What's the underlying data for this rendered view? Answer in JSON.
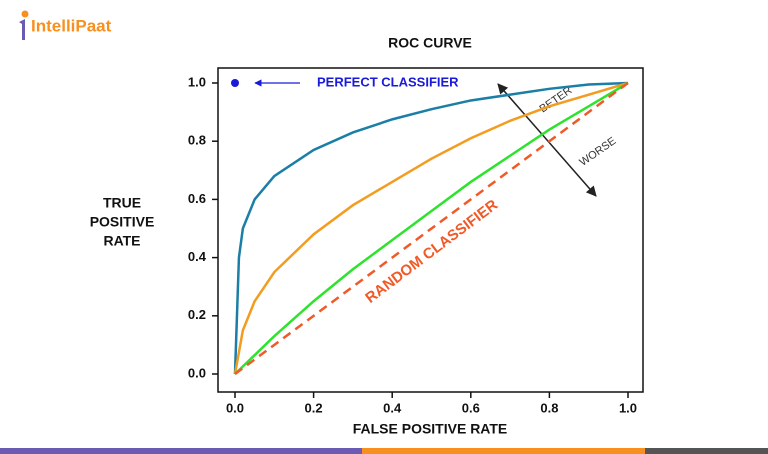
{
  "logo": "IntelliPaat",
  "chart_data": {
    "type": "line",
    "title": "ROC CURVE",
    "x_label": "FALSE POSITIVE RATE",
    "y_label": [
      "TRUE",
      "POSITIVE",
      "RATE"
    ],
    "xlim": [
      0,
      1
    ],
    "ylim": [
      0,
      1
    ],
    "xticks": [
      {
        "value": 0,
        "label": "0.0"
      },
      0.2,
      0.4,
      0.6,
      0.8,
      {
        "value": 1,
        "label": "1.0"
      }
    ],
    "yticks": [
      {
        "value": 0,
        "label": "0.0"
      },
      0.2,
      0.4,
      0.6,
      0.8,
      {
        "value": 1,
        "label": "1.0"
      }
    ],
    "series": [
      {
        "color": "#1a7ea6",
        "dashed": false,
        "x": [
          0,
          0.01,
          0.02,
          0.05,
          0.1,
          0.2,
          0.3,
          0.4,
          0.5,
          0.6,
          0.7,
          0.8,
          0.9,
          1.0
        ],
        "values": [
          0,
          0.4,
          0.5,
          0.6,
          0.68,
          0.77,
          0.83,
          0.875,
          0.91,
          0.94,
          0.96,
          0.98,
          0.995,
          1.0
        ]
      },
      {
        "color": "#f39c1f",
        "dashed": false,
        "x": [
          0,
          0.02,
          0.05,
          0.1,
          0.2,
          0.3,
          0.4,
          0.5,
          0.6,
          0.7,
          0.8,
          0.9,
          1.0
        ],
        "values": [
          0,
          0.15,
          0.25,
          0.35,
          0.48,
          0.58,
          0.66,
          0.74,
          0.81,
          0.87,
          0.92,
          0.96,
          1.0
        ]
      },
      {
        "color": "#2ee32e",
        "dashed": false,
        "x": [
          0,
          0.1,
          0.2,
          0.3,
          0.4,
          0.5,
          0.6,
          0.7,
          0.8,
          0.9,
          1.0
        ],
        "values": [
          0,
          0.13,
          0.25,
          0.36,
          0.46,
          0.56,
          0.66,
          0.75,
          0.84,
          0.92,
          1.0
        ]
      },
      {
        "name": "RANDOM CLASSIFIER",
        "color": "#f05a28",
        "dashed": true,
        "x": [
          0,
          1.0
        ],
        "values": [
          0,
          1.0
        ]
      }
    ],
    "perfect_point": {
      "label": "PERFECT CLASSIFIER",
      "x": 0,
      "y": 1,
      "color": "#1a1adb"
    },
    "annotations": [
      "BETER",
      "WORSE"
    ]
  }
}
